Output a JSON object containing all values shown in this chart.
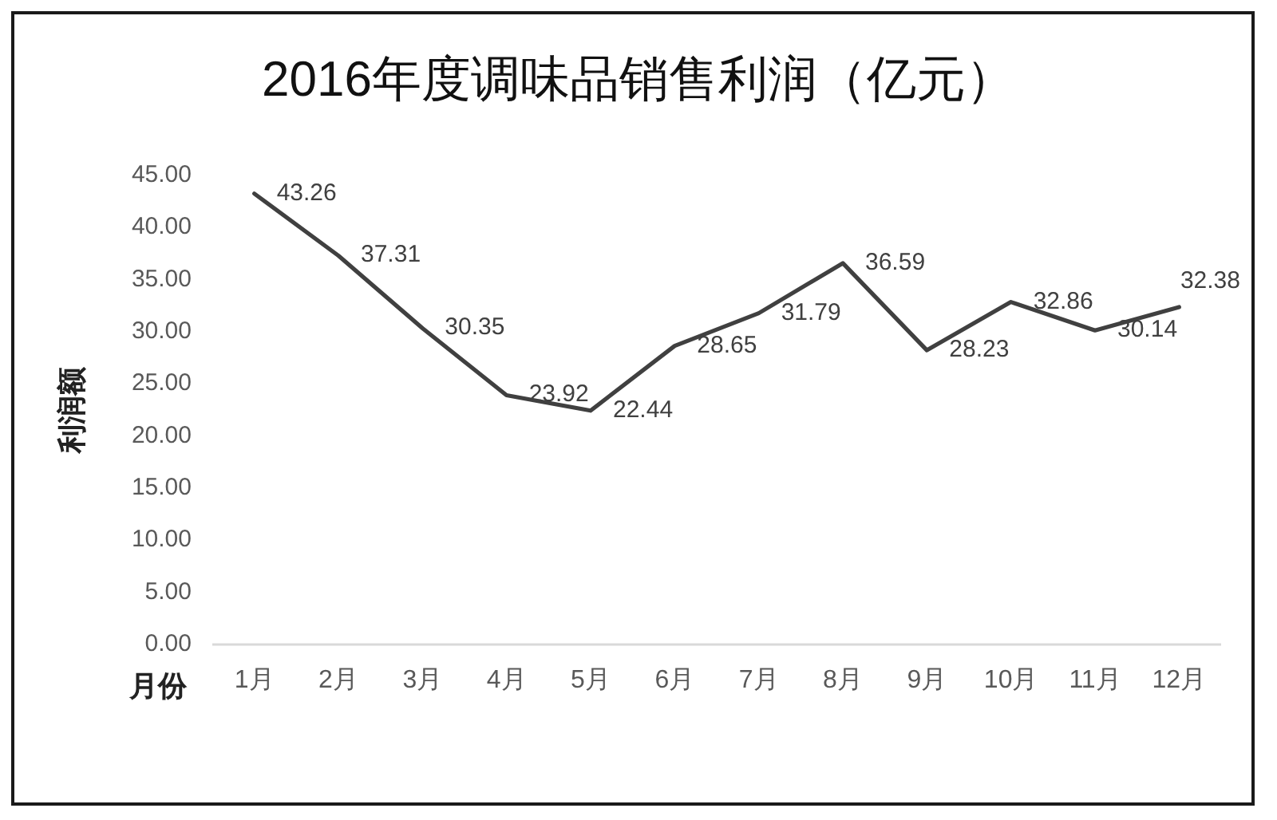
{
  "chart_data": {
    "type": "line",
    "title": "2016年度调味品销售利润（亿元）",
    "xlabel": "月份",
    "ylabel": "利润额",
    "categories": [
      "1月",
      "2月",
      "3月",
      "4月",
      "5月",
      "6月",
      "7月",
      "8月",
      "9月",
      "10月",
      "11月",
      "12月"
    ],
    "series": [
      {
        "color": "#404040",
        "values": [
          43.26,
          37.31,
          30.35,
          23.92,
          22.44,
          28.65,
          31.79,
          36.59,
          28.23,
          32.86,
          30.14,
          32.38
        ]
      }
    ],
    "ylim": [
      0,
      45
    ],
    "yticks": [
      {
        "value": 0,
        "label": "0.00"
      },
      {
        "value": 5,
        "label": "5.00"
      },
      {
        "value": 10,
        "label": "10.00"
      },
      {
        "value": 15,
        "label": "15.00"
      },
      {
        "value": 20,
        "label": "20.00"
      },
      {
        "value": 25,
        "label": "25.00"
      },
      {
        "value": 30,
        "label": "30.00"
      },
      {
        "value": 35,
        "label": "35.00"
      },
      {
        "value": 40,
        "label": "40.00"
      },
      {
        "value": 45,
        "label": "45.00"
      }
    ],
    "data_labels": true,
    "line_style": "solid"
  }
}
